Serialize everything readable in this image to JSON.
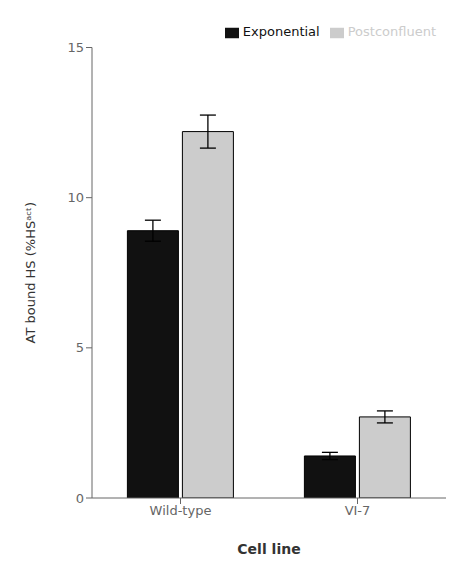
{
  "chart_data": {
    "type": "bar",
    "categories": [
      "Wild-type",
      "VI-7"
    ],
    "series": [
      {
        "name": "Exponential",
        "color": "#111111",
        "values": [
          8.9,
          1.4
        ],
        "errors": [
          0.35,
          0.12
        ]
      },
      {
        "name": "Postconfluent",
        "color": "#cccccc",
        "values": [
          12.2,
          2.7
        ],
        "errors": [
          0.55,
          0.2
        ]
      }
    ],
    "xlabel": "Cell  line",
    "ylabel": "AT bound HS (%HSᵃᶜᵗ)",
    "ylim": [
      0,
      15
    ],
    "yticks": [
      0,
      5,
      10,
      15
    ],
    "grid": false,
    "legend": "upper right"
  }
}
